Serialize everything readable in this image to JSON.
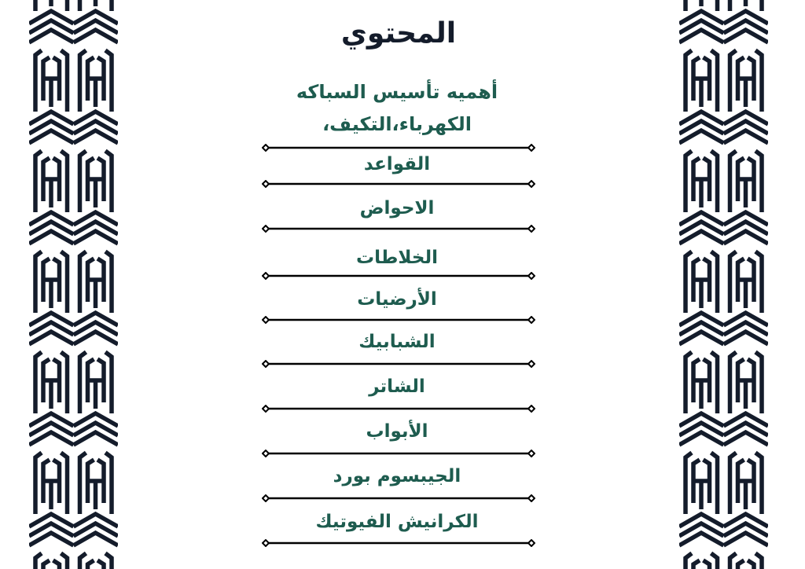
{
  "title": "المحتوي",
  "items": [
    {
      "label": "أهميه تأسيس السباكه الكهرباء،التكيف،"
    },
    {
      "label": "القواعد"
    },
    {
      "label": "الاحواض"
    },
    {
      "label": "الخلاطات"
    },
    {
      "label": "الأرضيات"
    },
    {
      "label": "الشبابيك"
    },
    {
      "label": "الشاتر"
    },
    {
      "label": "الأبواب"
    },
    {
      "label": "الجيبسوم بورد"
    },
    {
      "label": "الكرانيش الفيوتيك"
    }
  ],
  "colors": {
    "pattern": "#141c2b",
    "heading": "#141c2b",
    "items": "#1e5c4f"
  }
}
